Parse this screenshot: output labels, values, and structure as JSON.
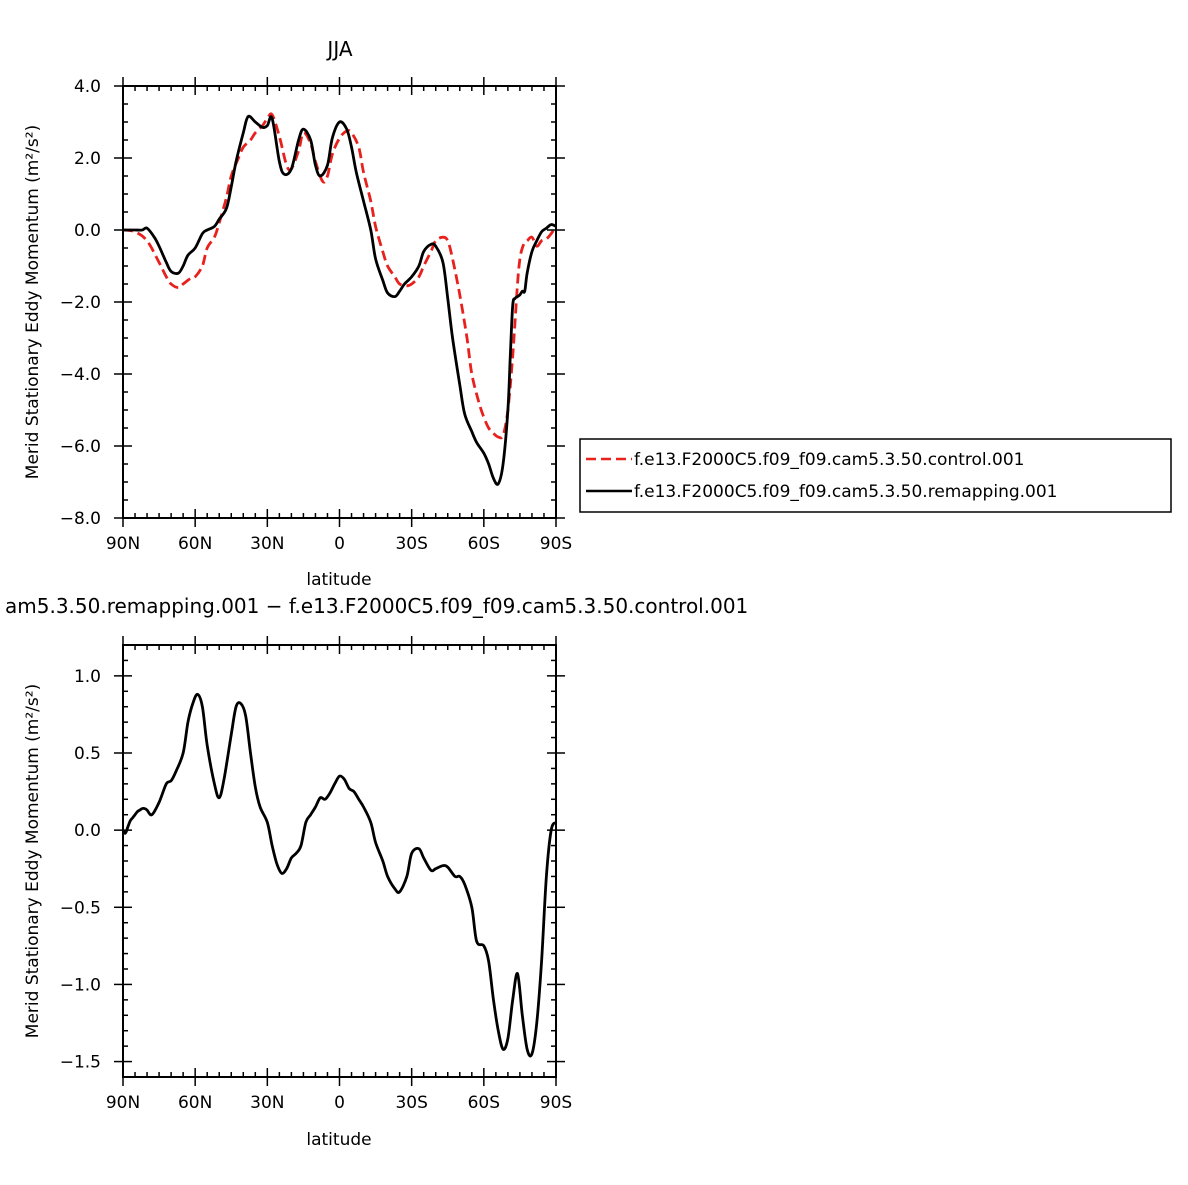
{
  "chart_data": [
    {
      "type": "line",
      "title": "JJA",
      "xlabel": "latitude",
      "ylabel": "Merid Stationary Eddy Momentum",
      "yunit": "(m²/s²)",
      "xlim": [
        -90,
        90
      ],
      "ylim": [
        -8.0,
        4.0
      ],
      "xticks": [
        -90,
        -60,
        -30,
        0,
        30,
        60,
        90
      ],
      "xtick_labels": [
        "90N",
        "60N",
        "30N",
        "0",
        "30S",
        "60S",
        "90S"
      ],
      "yticks": [
        -8,
        -6,
        -4,
        -2,
        0,
        2,
        4
      ],
      "ytick_labels": [
        "−8.0",
        "−6.0",
        "−4.0",
        "−2.0",
        "0.0",
        "2.0",
        "4.0"
      ],
      "grid": false,
      "legend_position": "right",
      "series": [
        {
          "name": "f.e13.F2000C5.f09_f09.cam5.3.50.control.001",
          "color": "#e8211d",
          "dash": "dashed",
          "x": [
            -90,
            -85,
            -80,
            -75,
            -72,
            -70,
            -67,
            -65,
            -62,
            -60,
            -57,
            -55,
            -52,
            -50,
            -47,
            -45,
            -42,
            -40,
            -37,
            -35,
            -32,
            -30,
            -28,
            -25,
            -22,
            -20,
            -17,
            -15,
            -12,
            -10,
            -7,
            -5,
            -3,
            0,
            3,
            5,
            8,
            10,
            13,
            15,
            18,
            20,
            23,
            25,
            28,
            30,
            33,
            35,
            38,
            40,
            43,
            45,
            47,
            50,
            53,
            55,
            58,
            60,
            62,
            64,
            66,
            68,
            70,
            72,
            74,
            75,
            76,
            77,
            78,
            80,
            82,
            84,
            86,
            88,
            90
          ],
          "y": [
            0.0,
            -0.05,
            -0.3,
            -0.9,
            -1.3,
            -1.5,
            -1.6,
            -1.5,
            -1.35,
            -1.3,
            -1.0,
            -0.5,
            -0.2,
            0.2,
            0.9,
            1.5,
            2.0,
            2.3,
            2.5,
            2.7,
            2.9,
            3.1,
            3.2,
            2.6,
            1.8,
            1.7,
            2.2,
            2.7,
            2.4,
            1.9,
            1.35,
            1.5,
            2.1,
            2.55,
            2.75,
            2.7,
            2.3,
            1.6,
            0.8,
            0.1,
            -0.6,
            -1.0,
            -1.3,
            -1.5,
            -1.55,
            -1.5,
            -1.3,
            -1.0,
            -0.6,
            -0.3,
            -0.2,
            -0.3,
            -0.8,
            -1.8,
            -3.0,
            -4.0,
            -4.8,
            -5.2,
            -5.5,
            -5.65,
            -5.75,
            -5.7,
            -5.0,
            -3.5,
            -1.5,
            -0.8,
            -0.5,
            -0.35,
            -0.3,
            -0.2,
            -0.45,
            -0.3,
            -0.25,
            -0.1,
            0.1
          ]
        },
        {
          "name": "f.e13.F2000C5.f09_f09.cam5.3.50.remapping.001",
          "color": "#000000",
          "dash": "solid",
          "x": [
            -90,
            -87,
            -85,
            -82,
            -80,
            -77,
            -75,
            -72,
            -70,
            -67,
            -65,
            -63,
            -60,
            -57,
            -55,
            -52,
            -50,
            -47,
            -45,
            -43,
            -40,
            -38,
            -35,
            -32,
            -30,
            -28,
            -25,
            -23,
            -20,
            -17,
            -15,
            -12,
            -10,
            -8,
            -5,
            -3,
            0,
            3,
            5,
            7,
            10,
            13,
            15,
            18,
            20,
            23,
            25,
            27,
            30,
            33,
            35,
            38,
            40,
            43,
            45,
            47,
            50,
            52,
            55,
            57,
            60,
            62,
            64,
            66,
            68,
            70,
            71,
            72,
            73,
            74,
            75,
            76,
            77,
            78,
            80,
            82,
            84,
            86,
            88,
            90
          ],
          "y": [
            0.0,
            0.0,
            0.0,
            0.0,
            0.05,
            -0.2,
            -0.45,
            -0.9,
            -1.15,
            -1.2,
            -1.0,
            -0.7,
            -0.5,
            -0.1,
            0.0,
            0.1,
            0.3,
            0.6,
            1.2,
            1.9,
            2.7,
            3.15,
            3.0,
            2.85,
            2.9,
            3.1,
            1.9,
            1.55,
            1.7,
            2.5,
            2.8,
            2.5,
            1.8,
            1.5,
            1.8,
            2.55,
            3.0,
            2.8,
            2.3,
            1.6,
            0.8,
            0.0,
            -0.8,
            -1.4,
            -1.75,
            -1.85,
            -1.7,
            -1.5,
            -1.3,
            -1.0,
            -0.6,
            -0.4,
            -0.45,
            -0.9,
            -1.9,
            -3.0,
            -4.3,
            -5.1,
            -5.6,
            -5.9,
            -6.2,
            -6.5,
            -6.9,
            -7.05,
            -6.5,
            -5.0,
            -3.5,
            -2.1,
            -1.9,
            -1.85,
            -1.8,
            -1.7,
            -1.7,
            -1.2,
            -0.6,
            -0.3,
            -0.05,
            0.05,
            0.15,
            0.1
          ]
        }
      ]
    },
    {
      "type": "line",
      "title": "am5.3.50.remapping.001 − f.e13.F2000C5.f09_f09.cam5.3.50.control.001",
      "xlabel": "latitude",
      "ylabel": "Merid Stationary Eddy Momentum",
      "yunit": "(m²/s²)",
      "xlim": [
        -90,
        90
      ],
      "ylim": [
        -1.6,
        1.2
      ],
      "xticks": [
        -90,
        -60,
        -30,
        0,
        30,
        60,
        90
      ],
      "xtick_labels": [
        "90N",
        "60N",
        "30N",
        "0",
        "30S",
        "60S",
        "90S"
      ],
      "yticks": [
        -1.5,
        -1.0,
        -0.5,
        0.0,
        0.5,
        1.0
      ],
      "ytick_labels": [
        "−1.5",
        "−1.0",
        "−0.5",
        "0.0",
        "0.5",
        "1.0"
      ],
      "grid": false,
      "series": [
        {
          "color": "#000000",
          "dash": "solid",
          "x": [
            -90,
            -89,
            -88,
            -87,
            -86,
            -85,
            -84,
            -83,
            -82,
            -81,
            -80,
            -78,
            -75,
            -72,
            -70,
            -68,
            -65,
            -63,
            -61,
            -59,
            -57,
            -55,
            -52,
            -50,
            -48,
            -45,
            -43,
            -41,
            -39,
            -37,
            -35,
            -33,
            -30,
            -28,
            -26,
            -24,
            -22,
            -20,
            -18,
            -16,
            -14,
            -12,
            -10,
            -8,
            -6,
            -4,
            -2,
            0,
            2,
            4,
            6,
            8,
            10,
            13,
            15,
            18,
            20,
            23,
            25,
            28,
            30,
            33,
            35,
            38,
            40,
            43,
            45,
            48,
            50,
            52,
            55,
            57,
            60,
            62,
            64,
            66,
            68,
            70,
            72,
            74,
            76,
            78,
            80,
            82,
            84,
            86,
            88,
            90
          ],
          "y": [
            0.0,
            -0.02,
            0.02,
            0.06,
            0.08,
            0.1,
            0.12,
            0.13,
            0.14,
            0.14,
            0.13,
            0.1,
            0.18,
            0.3,
            0.32,
            0.38,
            0.5,
            0.7,
            0.82,
            0.88,
            0.8,
            0.55,
            0.3,
            0.21,
            0.33,
            0.62,
            0.8,
            0.82,
            0.74,
            0.5,
            0.28,
            0.15,
            0.05,
            -0.1,
            -0.22,
            -0.28,
            -0.25,
            -0.18,
            -0.15,
            -0.1,
            0.05,
            0.1,
            0.15,
            0.21,
            0.2,
            0.24,
            0.3,
            0.35,
            0.33,
            0.27,
            0.25,
            0.2,
            0.15,
            0.05,
            -0.08,
            -0.2,
            -0.3,
            -0.38,
            -0.4,
            -0.3,
            -0.15,
            -0.12,
            -0.18,
            -0.26,
            -0.25,
            -0.23,
            -0.24,
            -0.3,
            -0.3,
            -0.35,
            -0.5,
            -0.72,
            -0.75,
            -0.85,
            -1.1,
            -1.3,
            -1.42,
            -1.35,
            -1.1,
            -0.93,
            -1.2,
            -1.42,
            -1.45,
            -1.25,
            -0.85,
            -0.3,
            0.0,
            0.05
          ]
        }
      ]
    }
  ]
}
